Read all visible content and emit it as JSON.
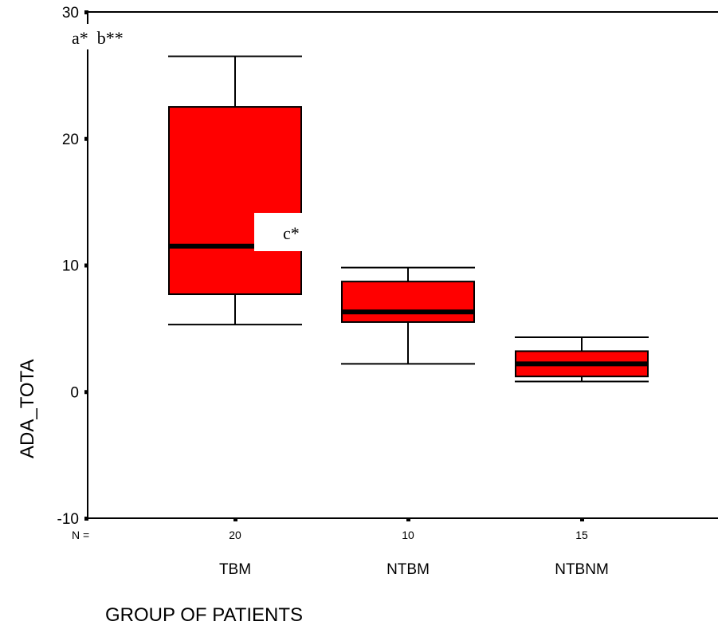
{
  "chart_data": {
    "type": "boxplot",
    "xlabel": "GROUP OF PATIENTS",
    "ylabel": "ADA_TOTA",
    "ylim": [
      -10,
      30
    ],
    "yticks": [
      -10,
      0,
      10,
      20,
      30
    ],
    "n_label": "N =",
    "grid": false,
    "box_color": "#ff0000",
    "median_color": "#000000",
    "categories": [
      "TBM",
      "NTBM",
      "NTBNM"
    ],
    "n": [
      "20",
      "10",
      "15"
    ],
    "boxes": [
      {
        "category": "TBM",
        "whisker_low": 5.3,
        "q1": 7.7,
        "median": 11.5,
        "q3": 22.5,
        "whisker_high": 26.5
      },
      {
        "category": "NTBM",
        "whisker_low": 2.2,
        "q1": 5.5,
        "median": 6.3,
        "q3": 8.7,
        "whisker_high": 9.8
      },
      {
        "category": "NTBNM",
        "whisker_low": 0.8,
        "q1": 1.2,
        "median": 2.2,
        "q3": 3.2,
        "whisker_high": 4.3
      }
    ],
    "annotations": [
      "a*  b**",
      "c*"
    ]
  }
}
